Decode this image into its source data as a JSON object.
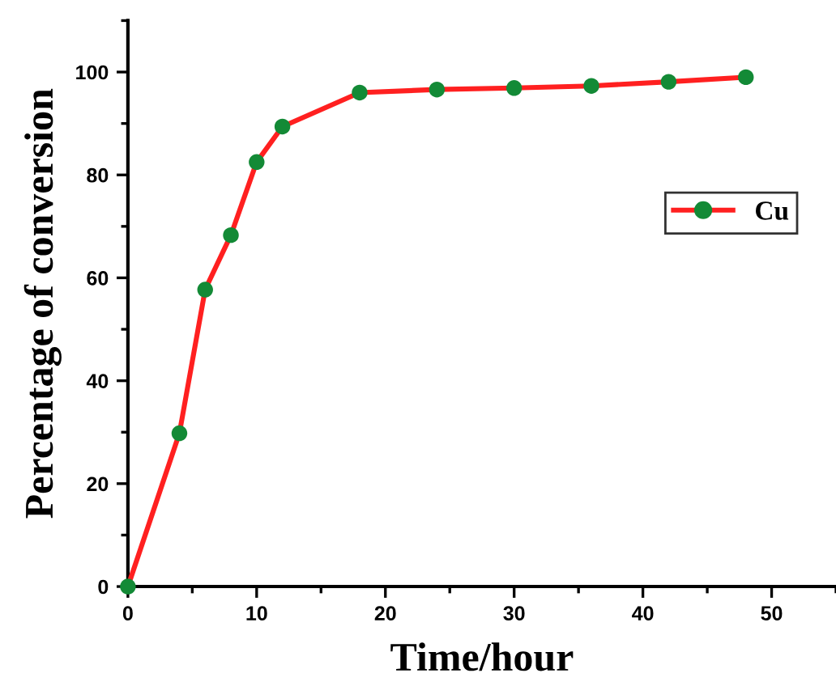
{
  "chart_data": {
    "type": "line",
    "xlabel": "Time/hour",
    "ylabel": "Percentage of conversion",
    "x": [
      0,
      4,
      6,
      8,
      10,
      12,
      18,
      24,
      30,
      36,
      42,
      48
    ],
    "series": [
      {
        "name": "Cu",
        "color": "#ff2020",
        "colors": [
          "#138a36",
          "#138a36",
          "#138a36",
          "#138a36",
          "#138a36",
          "#138a36",
          "#138a36",
          "#138a36",
          "#138a36",
          "#138a36",
          "#138a36",
          "#138a36"
        ],
        "values": [
          0,
          29.8,
          57.7,
          68.3,
          82.5,
          89.4,
          96.0,
          96.6,
          96.9,
          97.3,
          98.1,
          99.0
        ]
      }
    ],
    "xlim": [
      0,
      55
    ],
    "ylim": [
      0,
      110
    ],
    "xticks": [
      0,
      10,
      20,
      30,
      40,
      50
    ],
    "yticks": [
      0,
      20,
      40,
      60,
      80,
      100
    ],
    "marker": "circle",
    "line_style": "solid",
    "legend": "right",
    "grid": false
  }
}
